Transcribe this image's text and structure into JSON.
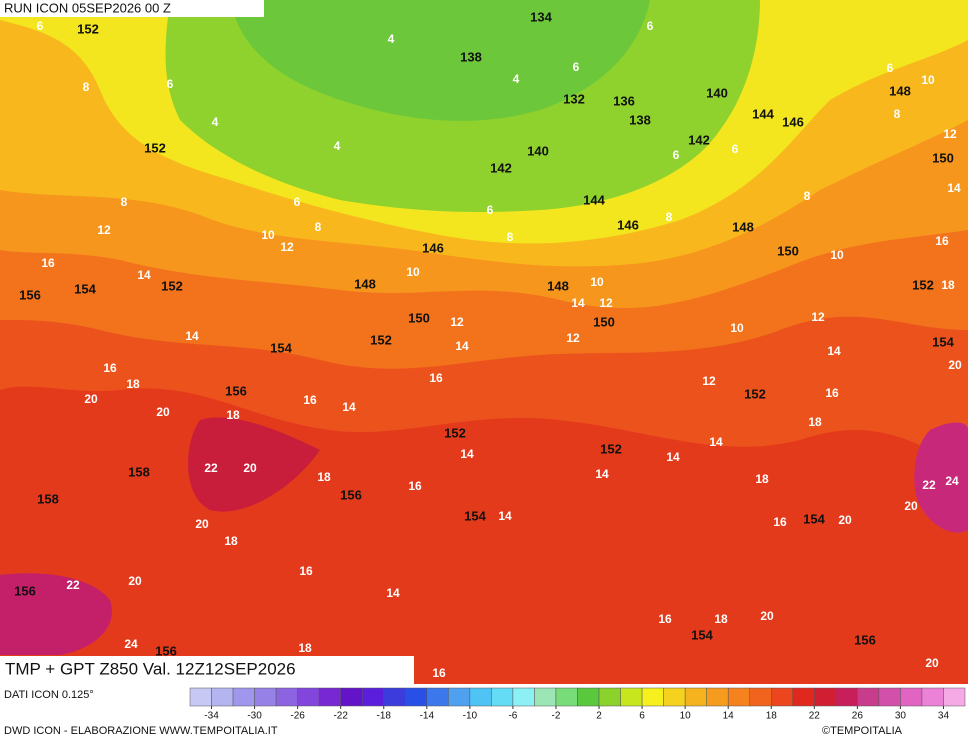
{
  "header": {
    "run": "RUN ICON 05SEP2026 00 Z",
    "title": "TMP + GPT Z850 Val. 12Z12SEP2026"
  },
  "footer": {
    "dati": "DATI ICON 0.125°",
    "credit": "DWD ICON - ELABORAZIONE WWW.TEMPOITALIA.IT",
    "copyright": "©TEMPOITALIA"
  },
  "colorbar": {
    "ticks": [
      -34,
      -30,
      -26,
      -22,
      -18,
      -14,
      -10,
      -6,
      -2,
      2,
      6,
      10,
      14,
      18,
      22,
      26,
      30,
      34
    ],
    "colors": [
      "#c8c8f5",
      "#b4b4f0",
      "#a096eb",
      "#9682e6",
      "#8c64e1",
      "#8246dc",
      "#7828d2",
      "#6414c8",
      "#5a1edc",
      "#3c3cdc",
      "#2850e6",
      "#3c78eb",
      "#50a0f0",
      "#50c3f5",
      "#64dcf5",
      "#8cf0f5",
      "#9be6b4",
      "#78dc78",
      "#5ac83c",
      "#8cd22d",
      "#c8e61e",
      "#f5f01e",
      "#f5d21e",
      "#f5b41e",
      "#f59b1e",
      "#f5821e",
      "#f0641e",
      "#eb461e",
      "#e1281e",
      "#d21e32",
      "#c81e5a",
      "#c83c8c",
      "#d250aa",
      "#e164c3",
      "#eb82d7",
      "#f5aae6"
    ]
  },
  "map": {
    "gpt_labels": [
      152,
      134,
      138,
      132,
      136,
      138,
      140,
      144,
      146,
      148,
      152,
      140,
      142,
      142,
      150,
      144,
      146,
      148,
      146,
      150,
      148,
      148,
      152,
      154,
      156,
      152,
      150,
      150,
      152,
      154,
      154,
      156,
      152,
      152,
      152,
      158,
      156,
      158,
      154,
      154,
      156,
      154,
      156,
      156
    ],
    "tmp_labels": [
      6,
      4,
      6,
      6,
      4,
      6,
      10,
      8,
      6,
      4,
      4,
      8,
      12,
      6,
      6,
      14,
      8,
      6,
      6,
      8,
      8,
      8,
      12,
      10,
      12,
      8,
      16,
      10,
      16,
      14,
      10,
      10,
      18,
      14,
      12,
      12,
      12,
      10,
      14,
      14,
      12,
      14,
      20,
      16,
      18,
      16,
      12,
      16,
      14,
      20,
      18,
      16,
      18,
      14,
      20,
      14,
      14,
      22,
      20,
      18,
      14,
      18,
      22,
      24,
      16,
      14,
      16,
      20,
      20,
      20,
      18,
      16,
      20,
      22,
      14,
      20,
      16,
      18,
      24,
      18,
      20,
      16
    ]
  }
}
